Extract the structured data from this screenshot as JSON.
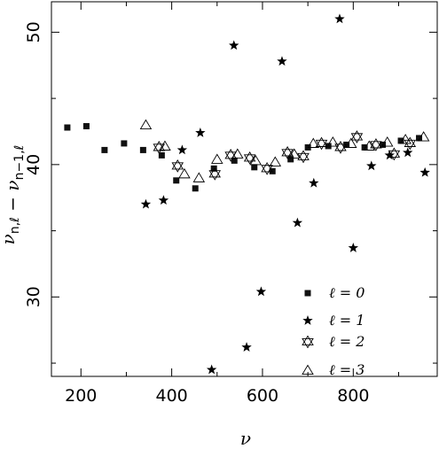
{
  "chart_data": {
    "type": "scatter",
    "xlabel": "ν",
    "ylabel": "ν_{n,ℓ} − ν_{n−1,ℓ}",
    "xlim": [
      135,
      985
    ],
    "ylim": [
      24,
      52.3
    ],
    "x_ticks": [
      200,
      400,
      600,
      800
    ],
    "y_ticks": [
      30,
      40,
      50
    ],
    "legend_position": "bottom-right",
    "series": [
      {
        "name": "ℓ = 0",
        "marker": "square",
        "x": [
          170,
          212,
          252,
          295,
          337,
          378,
          410,
          452,
          493,
          538,
          582,
          622,
          662,
          700,
          745,
          785,
          825,
          865,
          905,
          945
        ],
        "y": [
          42.8,
          42.9,
          41.1,
          41.6,
          41.1,
          40.7,
          38.8,
          38.2,
          39.7,
          40.3,
          39.8,
          39.5,
          40.4,
          41.3,
          41.4,
          41.5,
          41.3,
          41.5,
          41.8,
          42.0
        ]
      },
      {
        "name": "ℓ = 1",
        "marker": "star",
        "x": [
          343,
          382,
          423,
          463,
          488,
          537,
          565,
          597,
          643,
          677,
          713,
          770,
          800,
          840,
          880,
          920,
          958
        ],
        "y": [
          37.0,
          37.3,
          41.1,
          42.4,
          24.5,
          49.0,
          26.2,
          30.4,
          47.8,
          35.6,
          38.6,
          51.0,
          33.7,
          39.9,
          40.7,
          40.9,
          39.4
        ]
      },
      {
        "name": "ℓ = 2",
        "marker": "star-of-david",
        "x": [
          372,
          413,
          495,
          530,
          572,
          610,
          655,
          690,
          730,
          772,
          808,
          850,
          890,
          925
        ],
        "y": [
          41.3,
          39.9,
          39.3,
          40.7,
          40.5,
          39.7,
          40.9,
          40.6,
          41.6,
          41.3,
          42.1,
          41.5,
          40.8,
          41.6
        ]
      },
      {
        "name": "ℓ = 3",
        "marker": "triangle",
        "x": [
          343,
          385,
          428,
          460,
          500,
          545,
          585,
          628,
          670,
          712,
          755,
          795,
          835,
          875,
          915,
          955
        ],
        "y": [
          43.0,
          41.4,
          39.3,
          39.0,
          40.4,
          40.8,
          40.3,
          40.2,
          40.8,
          41.6,
          41.7,
          41.6,
          41.4,
          41.7,
          41.9,
          42.1
        ]
      }
    ]
  }
}
